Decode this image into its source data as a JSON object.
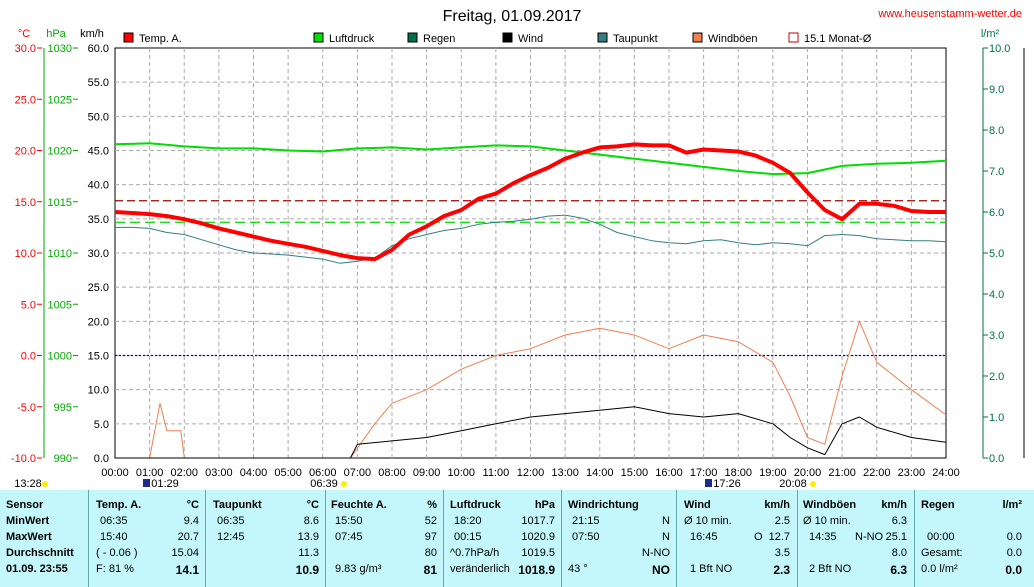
{
  "title": "Freitag, 01.09.2017",
  "website": "www.heusenstamm-wetter.de",
  "units": {
    "temp": "°C",
    "pressure": "hPa",
    "wind": "km/h",
    "rain": "l/m²"
  },
  "legend": [
    {
      "label": "Temp. A.",
      "color": "#ff0000",
      "style": "filled"
    },
    {
      "label": "",
      "color": "#ffffff",
      "style": "empty"
    },
    {
      "label": "Luftdruck",
      "color": "#00dd00",
      "style": "filled"
    },
    {
      "label": "Regen",
      "color": "#00704a",
      "style": "filled"
    },
    {
      "label": "Wind",
      "color": "#000000",
      "style": "filled"
    },
    {
      "label": "Taupunkt",
      "color": "#337f7f",
      "style": "filled"
    },
    {
      "label": "Windböen",
      "color": "#f08050",
      "style": "filled"
    },
    {
      "label": "15.1 Monat-Ø",
      "color": "#c00000",
      "style": "empty"
    }
  ],
  "chart_data": {
    "type": "line",
    "x_ticks": [
      "00:00",
      "01:00",
      "02:00",
      "03:00",
      "04:00",
      "05:00",
      "06:00",
      "07:00",
      "08:00",
      "09:00",
      "10:00",
      "11:00",
      "12:00",
      "13:00",
      "14:00",
      "15:00",
      "16:00",
      "17:00",
      "18:00",
      "19:00",
      "20:00",
      "21:00",
      "22:00",
      "23:00",
      "24:00"
    ],
    "axes": {
      "temp": {
        "label": "°C",
        "ticks": [
          "30.0",
          "25.0",
          "20.0",
          "15.0",
          "10.0",
          "5.0",
          "0.0",
          "-5.0",
          "-10.0"
        ],
        "min": -10,
        "max": 30,
        "color": "#ff0000"
      },
      "pressure": {
        "label": "hPa",
        "ticks": [
          "1030",
          "1025",
          "1020",
          "1015",
          "1010",
          "1005",
          "1000",
          "995",
          "990"
        ],
        "min": 990,
        "max": 1030,
        "color": "#00aa00"
      },
      "wind": {
        "label": "km/h",
        "ticks": [
          "60.0",
          "55.0",
          "50.0",
          "45.0",
          "40.0",
          "35.0",
          "30.0",
          "25.0",
          "20.0",
          "15.0",
          "10.0",
          "5.0",
          "0.0"
        ],
        "min": 0,
        "max": 60,
        "color": "#000000"
      },
      "rain": {
        "label": "l/m²",
        "ticks": [
          "10.0",
          "9.0",
          "8.0",
          "7.0",
          "6.0",
          "5.0",
          "4.0",
          "3.0",
          "2.0",
          "1.0",
          "0.0"
        ],
        "min": 0,
        "max": 10,
        "color": "#00704a"
      }
    },
    "reference_lines": {
      "monthly_avg_temp": 15.1,
      "zero_temp": 0.0,
      "pressure_ref": 1013.0
    },
    "series": [
      {
        "name": "Temp. A.",
        "axis": "temp",
        "color": "#ff0000",
        "x": [
          0,
          0.5,
          1,
          1.5,
          2,
          2.5,
          3,
          3.5,
          4,
          4.5,
          5,
          5.5,
          6,
          6.5,
          7,
          7.5,
          8,
          8.5,
          9,
          9.5,
          10,
          10.5,
          11,
          11.5,
          12,
          12.5,
          13,
          13.5,
          14,
          14.5,
          15,
          15.5,
          16,
          16.5,
          17,
          17.5,
          18,
          18.5,
          19,
          19.5,
          20,
          20.5,
          21,
          21.5,
          22,
          22.5,
          23,
          23.5,
          24
        ],
        "values": [
          14.0,
          13.9,
          13.8,
          13.6,
          13.3,
          12.9,
          12.4,
          12.0,
          11.6,
          11.2,
          10.9,
          10.6,
          10.2,
          9.8,
          9.5,
          9.4,
          10.3,
          11.8,
          12.6,
          13.6,
          14.2,
          15.3,
          15.8,
          16.8,
          17.6,
          18.3,
          19.2,
          19.8,
          20.3,
          20.4,
          20.6,
          20.5,
          20.5,
          19.8,
          20.1,
          20.0,
          19.9,
          19.5,
          18.8,
          17.8,
          15.9,
          14.2,
          13.3,
          14.8,
          14.8,
          14.6,
          14.1,
          14.0,
          14.0
        ]
      },
      {
        "name": "Luftdruck",
        "axis": "pressure",
        "color": "#00dd00",
        "x": [
          0,
          1,
          2,
          3,
          4,
          5,
          6,
          7,
          8,
          9,
          10,
          11,
          12,
          13,
          14,
          15,
          16,
          17,
          18,
          19,
          20,
          21,
          22,
          23,
          24
        ],
        "values": [
          1020.6,
          1020.7,
          1020.4,
          1020.2,
          1020.2,
          1020.0,
          1019.9,
          1020.2,
          1020.3,
          1020.1,
          1020.3,
          1020.5,
          1020.4,
          1020.0,
          1019.6,
          1019.2,
          1018.8,
          1018.4,
          1018.0,
          1017.7,
          1017.8,
          1018.5,
          1018.7,
          1018.8,
          1019.0
        ]
      },
      {
        "name": "Taupunkt",
        "axis": "temp",
        "color": "#337f7f",
        "x": [
          0,
          0.5,
          1,
          1.5,
          2,
          2.5,
          3,
          3.5,
          4,
          4.5,
          5,
          5.5,
          6,
          6.5,
          7,
          7.5,
          8,
          8.5,
          9,
          9.5,
          10,
          10.5,
          11,
          11.5,
          12,
          12.5,
          13,
          13.5,
          14,
          14.5,
          15,
          15.5,
          16,
          16.5,
          17,
          17.5,
          18,
          18.5,
          19,
          19.5,
          20,
          20.5,
          21,
          21.5,
          22,
          22.5,
          23,
          23.5,
          24
        ],
        "values": [
          12.5,
          12.5,
          12.4,
          12.0,
          11.8,
          11.3,
          10.8,
          10.3,
          10.0,
          9.9,
          9.8,
          9.6,
          9.4,
          9.0,
          9.2,
          9.5,
          10.7,
          11.4,
          11.8,
          12.2,
          12.4,
          12.8,
          13.0,
          13.1,
          13.3,
          13.6,
          13.7,
          13.4,
          12.8,
          12.0,
          11.6,
          11.2,
          11.0,
          10.9,
          11.2,
          11.3,
          11.0,
          10.8,
          11.0,
          10.9,
          10.7,
          11.7,
          11.8,
          11.7,
          11.4,
          11.3,
          11.2,
          11.2,
          11.1
        ]
      },
      {
        "name": "Wind",
        "axis": "wind",
        "color": "#000000",
        "x": [
          0,
          1.5,
          2,
          6.8,
          7,
          8,
          9,
          10,
          11,
          12,
          13,
          14,
          15,
          16,
          17,
          18,
          19,
          19.5,
          20,
          20.5,
          21,
          21.5,
          22,
          23,
          24
        ],
        "values": [
          0,
          0,
          0,
          0,
          2.0,
          2.5,
          3.0,
          4.0,
          5.0,
          6.0,
          6.5,
          7.0,
          7.5,
          6.5,
          6.0,
          6.5,
          5.0,
          3.0,
          1.5,
          0.5,
          5.0,
          6.0,
          4.5,
          3.0,
          2.3
        ]
      },
      {
        "name": "Windböen",
        "axis": "wind",
        "color": "#f08050",
        "x": [
          0,
          1.0,
          1.3,
          1.5,
          1.9,
          2.0,
          6.8,
          7.5,
          8,
          9,
          10,
          11,
          12,
          13,
          14,
          15,
          16,
          17,
          18,
          19,
          19.5,
          20,
          20.5,
          21,
          21.5,
          22,
          23,
          24
        ],
        "values": [
          0,
          0,
          8,
          4,
          4,
          0,
          0,
          5,
          8,
          10,
          13,
          15,
          16,
          18,
          19,
          18,
          16,
          18,
          17,
          14,
          9,
          3,
          2,
          12,
          20,
          14,
          10,
          6.3
        ]
      }
    ]
  },
  "markers": [
    {
      "label": "13:28",
      "type": "sun"
    },
    {
      "label": "01:29",
      "type": "moon"
    },
    {
      "label": "06:39",
      "type": "sun"
    },
    {
      "label": "17:26",
      "type": "moon"
    },
    {
      "label": "20:08",
      "type": "sun"
    }
  ],
  "table": {
    "sensor": {
      "header": "Sensor",
      "rows": [
        "MinWert",
        "MaxWert",
        "Durchschnitt"
      ],
      "footer": "01.09. 23:55"
    },
    "temp": {
      "header": "Temp. A.",
      "unit": "°C",
      "min_time": "06:35",
      "min": "9.4",
      "max_time": "15:40",
      "max": "20.7",
      "avg_note": "( - 0.06 )",
      "avg": "15.04",
      "footer_label": "F: 81 %",
      "footer_value": "14.1"
    },
    "dew": {
      "header": "Taupunkt",
      "unit": "°C",
      "min_time": "06:35",
      "min": "8.6",
      "max_time": "12:45",
      "max": "13.9",
      "avg": "11.3",
      "footer_value": "10.9"
    },
    "hum": {
      "header": "Feuchte A.",
      "unit": "%",
      "min_time": "15:50",
      "min": "52",
      "max_time": "07:45",
      "max": "97",
      "avg": "80",
      "footer_label": "9.83 g/m³",
      "footer_value": "81"
    },
    "press": {
      "header": "Luftdruck",
      "unit": "hPa",
      "min_time": "18:20",
      "min": "1017.7",
      "max_time": "00:15",
      "max": "1020.9",
      "avg_note": "^0.7hPa/h",
      "avg": "1019.5",
      "footer_label": "veränderlich",
      "footer_value": "1018.9"
    },
    "wdir": {
      "header": "Windrichtung",
      "min_time": "21:15",
      "min": "N",
      "max_time": "07:50",
      "max": "N",
      "avg": "N-NO",
      "footer_label": "43 °",
      "footer_value": "NO"
    },
    "wind": {
      "header": "Wind",
      "unit": "km/h",
      "min_time": "Ø 10 min.",
      "min": "2.5",
      "max_time": "16:45",
      "max_note": "O",
      "max": "12.7",
      "avg": "3.5",
      "footer_label": "1 Bft NO",
      "footer_value": "2.3"
    },
    "gust": {
      "header": "Windböen",
      "unit": "km/h",
      "min_time": "Ø 10 min.",
      "min": "6.3",
      "max_time": "14:35",
      "max_note": "N-NO",
      "max": "25.1",
      "avg": "8.0",
      "footer_label": "2 Bft NO",
      "footer_value": "6.3"
    },
    "rain": {
      "header": "Regen",
      "unit": "l/m²",
      "min_time": "00:00",
      "min": "0.0",
      "avg_label": "Gesamt:",
      "avg": "0.0",
      "footer_label": "0.0 l/m²",
      "footer_value": "0.0"
    }
  }
}
